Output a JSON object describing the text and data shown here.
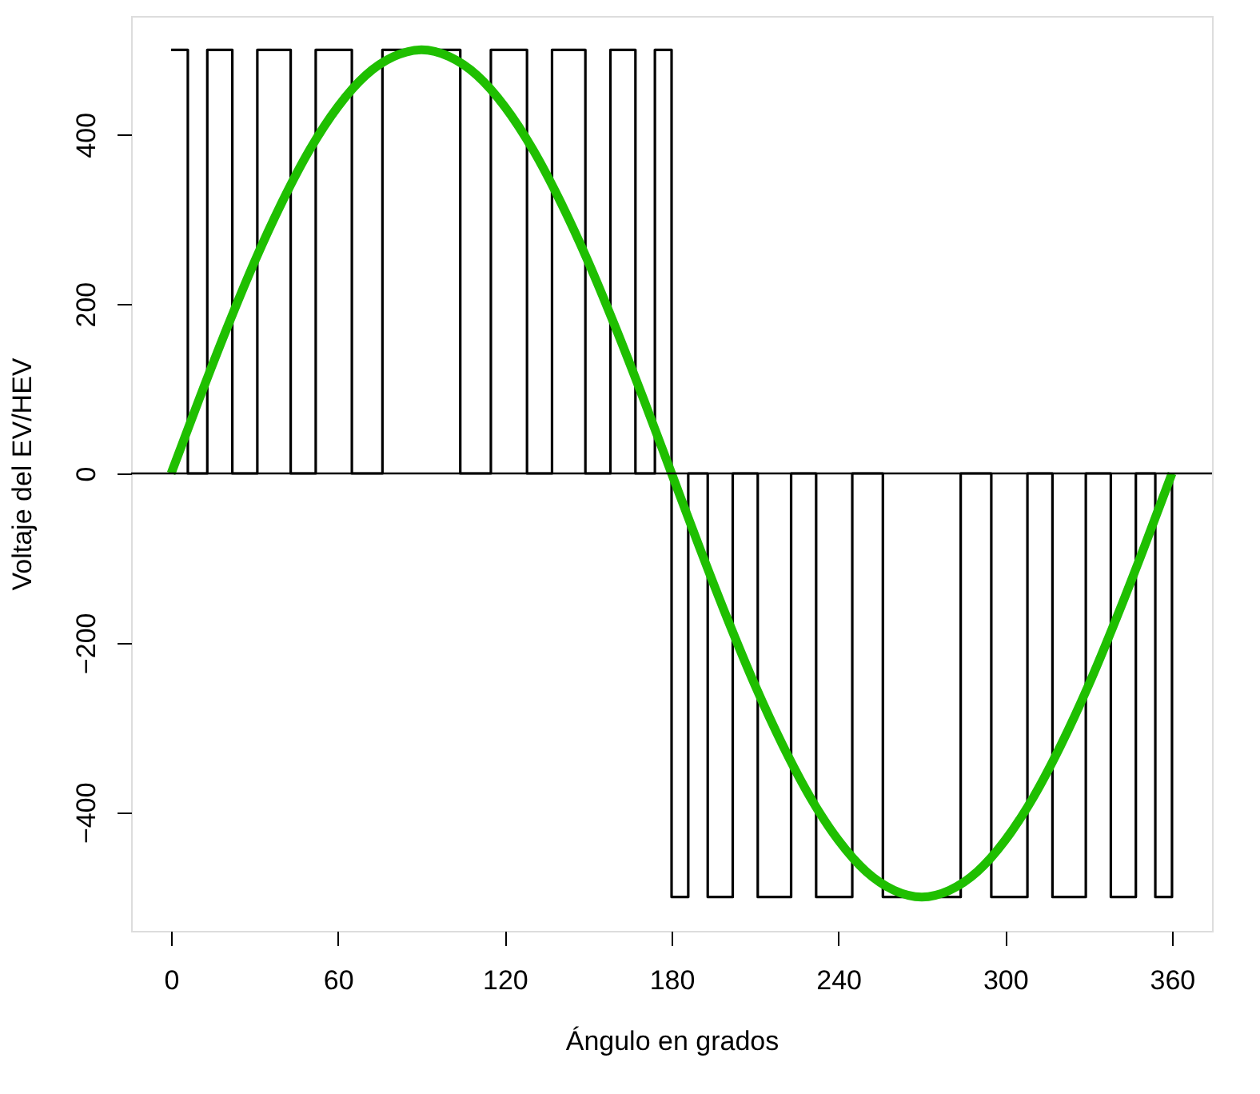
{
  "chart_data": {
    "type": "line",
    "xlabel": "Ángulo en grados",
    "ylabel": "Voltaje del EV/HEV",
    "xlim": [
      -14.4,
      374.4
    ],
    "xticks": [
      0,
      60,
      120,
      180,
      240,
      300,
      360
    ],
    "ylim": [
      -540,
      540
    ],
    "yticks": [
      -400,
      -200,
      0,
      200,
      400
    ],
    "grid": false,
    "ref_lines": [
      {
        "axis": "y",
        "value": 0,
        "color": "#000000"
      }
    ],
    "series": [
      {
        "type": "step",
        "color": "#000000",
        "x": [
          0,
          6,
          13,
          22,
          31,
          43,
          52,
          65,
          76,
          104,
          115,
          128,
          137,
          149,
          158,
          167,
          174,
          180,
          186,
          193,
          202,
          211,
          223,
          232,
          245,
          256,
          284,
          295,
          308,
          317,
          329,
          338,
          347,
          354,
          360
        ],
        "values": [
          500,
          0,
          500,
          0,
          500,
          0,
          500,
          0,
          500,
          0,
          500,
          0,
          500,
          0,
          500,
          0,
          500,
          -500,
          0,
          -500,
          0,
          -500,
          0,
          -500,
          0,
          -500,
          0,
          -500,
          0,
          -500,
          0,
          -500,
          0,
          -500,
          0
        ]
      },
      {
        "color": "#1fbf00",
        "x": [
          0,
          10,
          20,
          30,
          40,
          50,
          60,
          70,
          80,
          90,
          100,
          110,
          120,
          130,
          140,
          150,
          160,
          170,
          180,
          190,
          200,
          210,
          220,
          230,
          240,
          250,
          260,
          270,
          280,
          290,
          300,
          310,
          320,
          330,
          340,
          350,
          360
        ],
        "values": [
          0,
          87,
          171,
          250,
          321,
          383,
          433,
          470,
          492,
          500,
          492,
          470,
          433,
          383,
          321,
          250,
          171,
          87,
          0,
          -87,
          -171,
          -250,
          -321,
          -383,
          -433,
          -470,
          -492,
          -500,
          -492,
          -470,
          -433,
          -383,
          -321,
          -250,
          -171,
          -87,
          0
        ]
      }
    ]
  }
}
